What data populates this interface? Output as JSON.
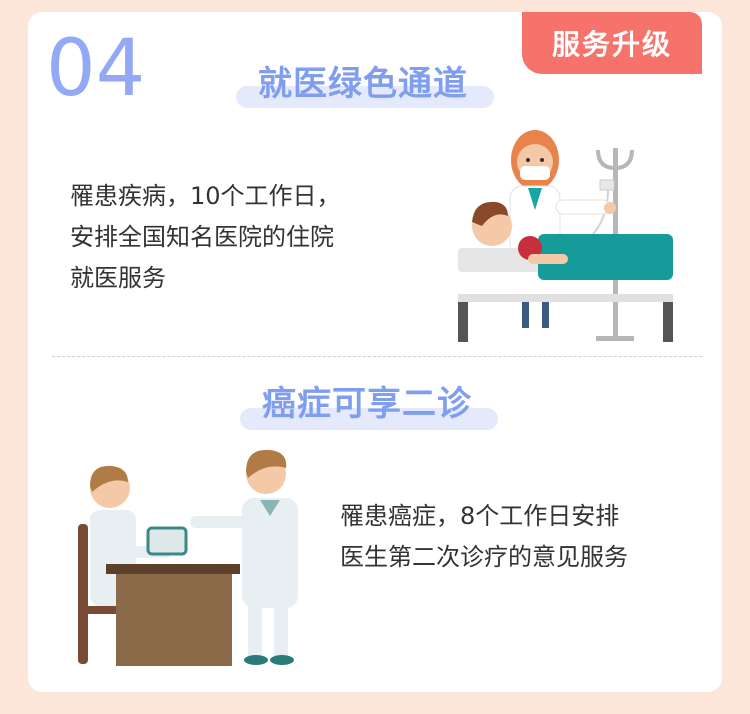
{
  "badge": "服务升级",
  "section1": {
    "number": "04",
    "title": "就医绿色通道",
    "lines": [
      "罹患疾病，10个工作日，",
      "安排全国知名医院的住院",
      "就医服务"
    ]
  },
  "section2": {
    "title": "癌症可享二诊",
    "lines": [
      "罹患癌症，8个工作日安排",
      "医生第二次诊疗的意见服务"
    ]
  },
  "colors": {
    "accent": "#7f9ef0",
    "badge": "#f6736c",
    "background": "#fde6da"
  },
  "icons": [
    "hospital-bed-illustration",
    "doctor-consultation-illustration"
  ]
}
